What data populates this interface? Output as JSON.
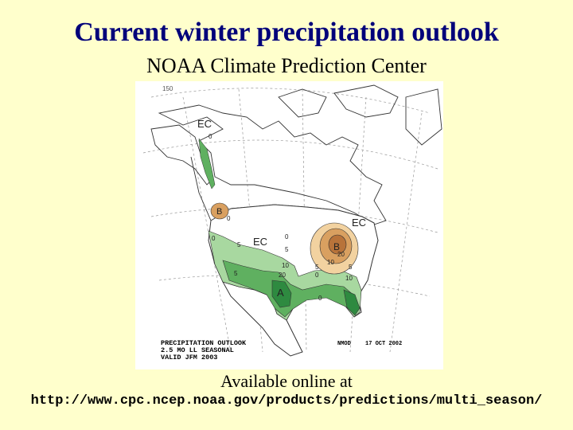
{
  "slide": {
    "title": "Current winter precipitation outlook",
    "subtitle": "NOAA Climate Prediction Center",
    "available_text": "Available online at",
    "url": "http://www.cpc.ncep.noaa.gov/products/predictions/multi_season/"
  },
  "map": {
    "legend_lines": [
      "PRECIPITATION OUTLOOK",
      "2.5 MO LL SEASONAL",
      "VALID JFM 2003"
    ],
    "credit": "NMOD",
    "date": "17 OCT 2002",
    "corner_label": "150",
    "region_labels": {
      "ec_alaska": "EC",
      "ec_west": "EC",
      "ec_northeast": "EC",
      "below_nw": "B",
      "below_ohio": "B",
      "above_gulf": "A"
    },
    "contour_labels": [
      "0",
      "0",
      "0",
      "0",
      "5",
      "5",
      "5",
      "10",
      "20",
      "0",
      "5",
      "10",
      "20",
      "0",
      "5",
      "10"
    ],
    "colors": {
      "above_light": "#a8d8a0",
      "above_mid": "#5fb060",
      "above_dark": "#2e8a40",
      "below_light": "#f2d2a0",
      "below_mid": "#d9a060",
      "below_dark": "#b8733a"
    }
  }
}
